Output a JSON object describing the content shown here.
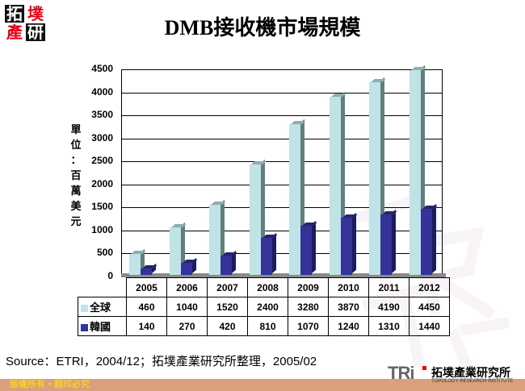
{
  "header": {
    "logo_chars": [
      "拓",
      "墣",
      "產",
      "研"
    ],
    "title": "DMB接收機市場規模"
  },
  "colors": {
    "global": "#bfe3e6",
    "global_side": "#5f7f7e",
    "global_top": "#8faeac",
    "korea": "#333399",
    "korea_side": "#1c1c5a",
    "korea_top": "#25256e",
    "footer_bg": "#d9a07c",
    "footer_text": "#ffe600",
    "logo_red": "#e60012"
  },
  "chart_data": {
    "type": "bar",
    "title": "DMB接收機市場規模",
    "ylabel": "單位：百萬美元",
    "xlabel": "",
    "categories": [
      "2005",
      "2006",
      "2007",
      "2008",
      "2009",
      "2010",
      "2011",
      "2012"
    ],
    "series": [
      {
        "name": "全球",
        "values": [
          460,
          1040,
          1520,
          2400,
          3280,
          3870,
          4190,
          4450
        ]
      },
      {
        "name": "韓國",
        "values": [
          140,
          270,
          420,
          810,
          1070,
          1240,
          1310,
          1440
        ]
      }
    ],
    "ylim": [
      0,
      4500
    ],
    "yticks": [
      "4500",
      "4000",
      "3500",
      "3000",
      "2500",
      "2000",
      "1500",
      "1000",
      "500",
      "0"
    ],
    "grid": true,
    "legend_position": "data-table",
    "style": "3d-clustered-column"
  },
  "axis": {
    "ylabel_chars": [
      "單",
      "位",
      "：",
      "百",
      "萬",
      "美",
      "元"
    ]
  },
  "table": {
    "years": [
      "2005",
      "2006",
      "2007",
      "2008",
      "2009",
      "2010",
      "2011",
      "2012"
    ],
    "rows": [
      {
        "label": "全球",
        "values": [
          "460",
          "1040",
          "1520",
          "2400",
          "3280",
          "3870",
          "4190",
          "4450"
        ]
      },
      {
        "label": "韓國",
        "values": [
          "140",
          "270",
          "420",
          "810",
          "1070",
          "1240",
          "1310",
          "1440"
        ]
      }
    ]
  },
  "source": "Source：ETRI，2004/12；拓墣產業研究所整理，2005/02",
  "footer": {
    "copyright": "版權所有・翻印必究",
    "brand_mark": "TRi",
    "brand_cn": "拓墣產業研究所",
    "brand_en": "TOPOLOGY RESEARCH INSTITUTE"
  }
}
